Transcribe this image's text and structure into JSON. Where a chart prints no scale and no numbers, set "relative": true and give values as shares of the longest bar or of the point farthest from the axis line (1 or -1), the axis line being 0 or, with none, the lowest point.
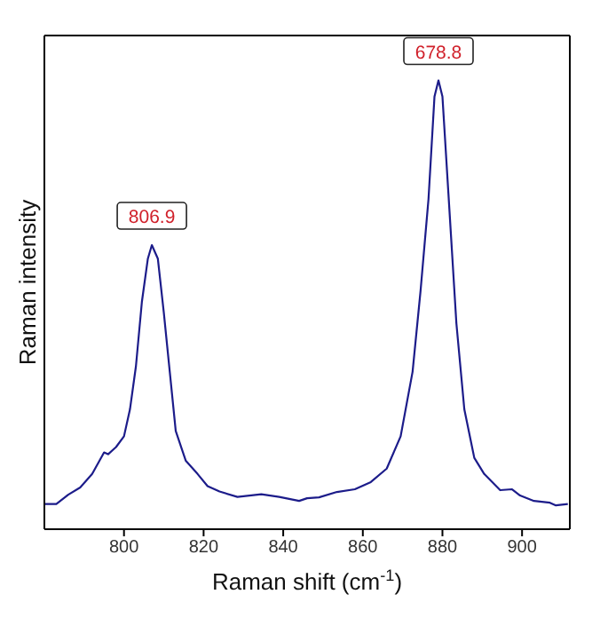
{
  "chart_data": {
    "type": "line",
    "xlabel": "Raman shift (cm$^{-1}$)",
    "ylabel": "Raman intensity",
    "relative": true,
    "xlim": [
      780,
      912
    ],
    "xticks": [
      800,
      820,
      840,
      860,
      880,
      900
    ],
    "grid": false,
    "marker": "none",
    "line_style": "solid",
    "annotations": [
      {
        "text": "806.9",
        "x": 807,
        "y": 0.633
      },
      {
        "text": "678.8",
        "x": 879,
        "y": 1.0
      }
    ],
    "series": [
      {
        "color": "#1c1c8a",
        "x": [
          780.2,
          783,
          786,
          789,
          792,
          795,
          796,
          798,
          800,
          801.5,
          803,
          804.5,
          806,
          807,
          808.5,
          810,
          811.5,
          813,
          815.5,
          818.5,
          821,
          824,
          828.5,
          834.5,
          839,
          844,
          846,
          849,
          853.5,
          858,
          862,
          866,
          869.5,
          872.5,
          874.5,
          876.5,
          878,
          879,
          880,
          881.5,
          883.5,
          885.5,
          888,
          890.5,
          894.5,
          897.5,
          899.5,
          903,
          907,
          908.5,
          911.5
        ],
        "values": [
          0.056,
          0.056,
          0.077,
          0.093,
          0.123,
          0.171,
          0.167,
          0.183,
          0.207,
          0.267,
          0.363,
          0.507,
          0.603,
          0.633,
          0.603,
          0.483,
          0.351,
          0.219,
          0.153,
          0.123,
          0.096,
          0.084,
          0.072,
          0.078,
          0.072,
          0.063,
          0.069,
          0.071,
          0.083,
          0.089,
          0.105,
          0.135,
          0.207,
          0.351,
          0.531,
          0.736,
          0.964,
          1.0,
          0.964,
          0.748,
          0.459,
          0.267,
          0.159,
          0.123,
          0.087,
          0.089,
          0.075,
          0.063,
          0.059,
          0.053,
          0.056
        ]
      }
    ]
  }
}
